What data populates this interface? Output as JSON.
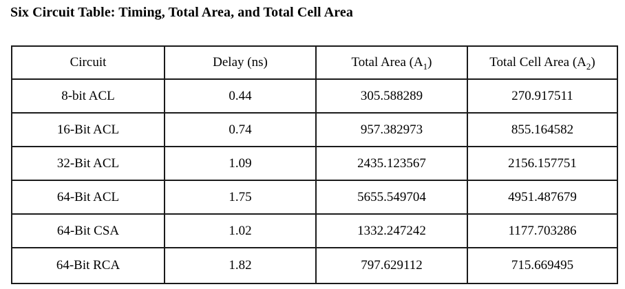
{
  "page": {
    "title": "Six Circuit Table: Timing, Total Area, and Total Cell Area"
  },
  "table": {
    "headers": [
      {
        "pre": "Circuit",
        "sub": "",
        "post": ""
      },
      {
        "pre": "Delay (ns)",
        "sub": "",
        "post": ""
      },
      {
        "pre": "Total Area (A",
        "sub": "1",
        "post": ")"
      },
      {
        "pre": "Total Cell Area (A",
        "sub": "2",
        "post": ")"
      }
    ],
    "rows": [
      {
        "circuit": "8-bit ACL",
        "delay": "0.44",
        "total_area": "305.588289",
        "total_cell_area": "270.917511"
      },
      {
        "circuit": "16-Bit ACL",
        "delay": "0.74",
        "total_area": "957.382973",
        "total_cell_area": "855.164582"
      },
      {
        "circuit": "32-Bit ACL",
        "delay": "1.09",
        "total_area": "2435.123567",
        "total_cell_area": "2156.157751"
      },
      {
        "circuit": "64-Bit ACL",
        "delay": "1.75",
        "total_area": "5655.549704",
        "total_cell_area": "4951.487679"
      },
      {
        "circuit": "64-Bit CSA",
        "delay": "1.02",
        "total_area": "1332.247242",
        "total_cell_area": "1177.703286"
      },
      {
        "circuit": "64-Bit RCA",
        "delay": "1.82",
        "total_area": "797.629112",
        "total_cell_area": "715.669495"
      }
    ],
    "colors": {
      "border": "#1a1a1a",
      "text": "#000000",
      "background": "#ffffff"
    }
  }
}
